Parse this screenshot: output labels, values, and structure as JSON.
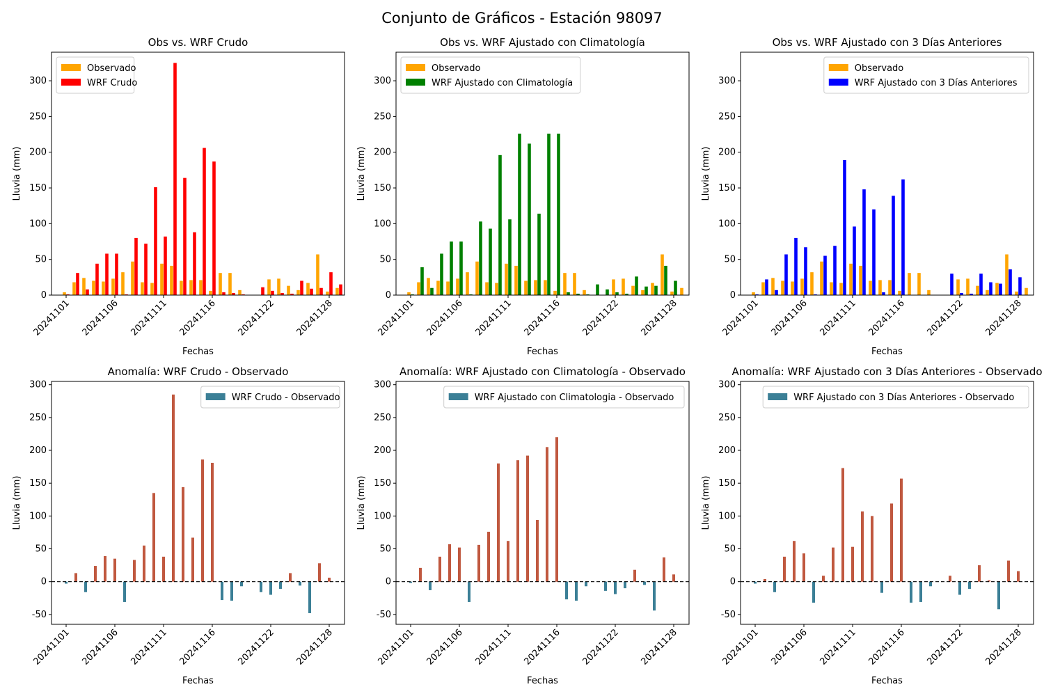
{
  "figure": {
    "title": "Conjunto de Gráficos - Estación 98097"
  },
  "colors": {
    "observed": "#ffa500",
    "wrf_crudo": "#ff0000",
    "wrf_clim": "#008000",
    "wrf_3d": "#0000ff",
    "anomaly_positive": "#c0583f",
    "anomaly_negative": "#3b7f96",
    "anomaly_legend": "#3b7f96"
  },
  "chart_data": [
    {
      "type": "bar",
      "title": "Obs vs. WRF Crudo",
      "xlabel": "Fechas",
      "ylabel": "Lluvia (mm)",
      "ylim": [
        0,
        340
      ],
      "yticks": [
        0,
        50,
        100,
        150,
        200,
        250,
        300
      ],
      "xtick_labels": [
        "20241101",
        "20241106",
        "20241111",
        "20241116",
        "20241122",
        "20241128"
      ],
      "legend_position": "top-left",
      "categories": [
        "20241101",
        "20241102",
        "20241103",
        "20241104",
        "20241105",
        "20241106",
        "20241107",
        "20241108",
        "20241109",
        "20241110",
        "20241111",
        "20241112",
        "20241113",
        "20241114",
        "20241115",
        "20241116",
        "20241117",
        "20241118",
        "20241119",
        "20241120",
        "20241121",
        "20241122",
        "20241123",
        "20241124",
        "20241125",
        "20241126",
        "20241127",
        "20241128",
        "20241129",
        "20241130"
      ],
      "series": [
        {
          "name": "Observado",
          "color_key": "observed",
          "values": [
            4,
            18,
            24,
            20,
            19,
            23,
            32,
            47,
            18,
            17,
            44,
            41,
            20,
            21,
            21,
            6,
            31,
            31,
            7,
            null,
            null,
            22,
            23,
            13,
            7,
            17,
            57,
            5,
            10,
            null
          ]
        },
        {
          "name": "WRF Crudo",
          "color_key": "wrf_crudo",
          "values": [
            1,
            31,
            8,
            44,
            58,
            58,
            1,
            80,
            72,
            151,
            82,
            325,
            164,
            88,
            206,
            187,
            4,
            3,
            1,
            null,
            11,
            6,
            3,
            2,
            20,
            9,
            10,
            32,
            15,
            null
          ]
        }
      ]
    },
    {
      "type": "bar",
      "title": "Obs vs. WRF Ajustado con Climatología",
      "xlabel": "Fechas",
      "ylabel": "Lluvia (mm)",
      "ylim": [
        0,
        340
      ],
      "yticks": [
        0,
        50,
        100,
        150,
        200,
        250,
        300
      ],
      "xtick_labels": [
        "20241101",
        "20241106",
        "20241111",
        "20241116",
        "20241122",
        "20241128"
      ],
      "legend_position": "top-left",
      "categories": [
        "20241101",
        "20241102",
        "20241103",
        "20241104",
        "20241105",
        "20241106",
        "20241107",
        "20241108",
        "20241109",
        "20241110",
        "20241111",
        "20241112",
        "20241113",
        "20241114",
        "20241115",
        "20241116",
        "20241117",
        "20241118",
        "20241119",
        "20241120",
        "20241121",
        "20241122",
        "20241123",
        "20241124",
        "20241125",
        "20241126",
        "20241127",
        "20241128",
        "20241129",
        "20241130"
      ],
      "series": [
        {
          "name": "Observado",
          "color_key": "observed",
          "values": [
            4,
            18,
            24,
            20,
            19,
            23,
            32,
            47,
            18,
            17,
            44,
            41,
            20,
            21,
            21,
            6,
            31,
            31,
            7,
            null,
            null,
            22,
            23,
            13,
            7,
            17,
            57,
            5,
            10,
            null
          ]
        },
        {
          "name": "WRF Ajustado con Climatología",
          "color_key": "wrf_clim",
          "values": [
            1,
            39,
            10,
            58,
            75,
            75,
            1,
            103,
            93,
            196,
            106,
            226,
            212,
            114,
            226,
            226,
            4,
            2,
            1,
            15,
            8,
            4,
            2,
            26,
            12,
            13,
            41,
            20,
            null,
            null
          ]
        }
      ]
    },
    {
      "type": "bar",
      "title": "Obs vs. WRF Ajustado con 3 Días Anteriores",
      "xlabel": "Fechas",
      "ylabel": "Lluvia (mm)",
      "ylim": [
        0,
        340
      ],
      "yticks": [
        0,
        50,
        100,
        150,
        200,
        250,
        300
      ],
      "xtick_labels": [
        "20241101",
        "20241106",
        "20241111",
        "20241116",
        "20241122",
        "20241128"
      ],
      "legend_position": "top-right",
      "categories": [
        "20241101",
        "20241102",
        "20241103",
        "20241104",
        "20241105",
        "20241106",
        "20241107",
        "20241108",
        "20241109",
        "20241110",
        "20241111",
        "20241112",
        "20241113",
        "20241114",
        "20241115",
        "20241116",
        "20241117",
        "20241118",
        "20241119",
        "20241120",
        "20241121",
        "20241122",
        "20241123",
        "20241124",
        "20241125",
        "20241126",
        "20241127",
        "20241128",
        "20241129",
        "20241130"
      ],
      "series": [
        {
          "name": "Observado",
          "color_key": "observed",
          "values": [
            4,
            18,
            24,
            20,
            19,
            23,
            32,
            47,
            18,
            17,
            44,
            41,
            20,
            21,
            21,
            6,
            31,
            31,
            7,
            null,
            null,
            22,
            23,
            13,
            7,
            17,
            57,
            5,
            10,
            null
          ]
        },
        {
          "name": "WRF Ajustado con 3 Días Anteriores",
          "color_key": "wrf_3d",
          "values": [
            1,
            22,
            7,
            57,
            80,
            67,
            1,
            55,
            69,
            189,
            96,
            148,
            120,
            4,
            139,
            162,
            null,
            null,
            null,
            null,
            30,
            3,
            2,
            30,
            18,
            16,
            36,
            25,
            null,
            null
          ]
        }
      ]
    },
    {
      "type": "bar",
      "title": "Anomalía: WRF Crudo - Observado",
      "xlabel": "Fechas",
      "ylabel": "Lluvia (mm)",
      "ylim": [
        -65,
        305
      ],
      "yticks": [
        -50,
        0,
        50,
        100,
        150,
        200,
        250,
        300
      ],
      "xtick_labels": [
        "20241101",
        "20241106",
        "20241111",
        "20241116",
        "20241122",
        "20241128"
      ],
      "legend_position": "top-right",
      "zero_line": true,
      "categories": [
        "20241101",
        "20241102",
        "20241103",
        "20241104",
        "20241105",
        "20241106",
        "20241107",
        "20241108",
        "20241109",
        "20241110",
        "20241111",
        "20241112",
        "20241113",
        "20241114",
        "20241115",
        "20241116",
        "20241117",
        "20241118",
        "20241119",
        "20241120",
        "20241121",
        "20241122",
        "20241123",
        "20241124",
        "20241125",
        "20241126",
        "20241127",
        "20241128",
        "20241129",
        "20241130"
      ],
      "series": [
        {
          "name": "WRF Crudo - Observado",
          "values": [
            -3,
            13,
            -16,
            24,
            39,
            35,
            -31,
            33,
            55,
            135,
            38,
            285,
            144,
            67,
            186,
            181,
            -28,
            -29,
            -7,
            null,
            -16,
            -20,
            -11,
            13,
            -6,
            -48,
            28,
            6,
            null,
            null
          ]
        }
      ]
    },
    {
      "type": "bar",
      "title": "Anomalía: WRF Ajustado con Climatología - Observado",
      "xlabel": "Fechas",
      "ylabel": "Lluvia (mm)",
      "ylim": [
        -65,
        305
      ],
      "yticks": [
        -50,
        0,
        50,
        100,
        150,
        200,
        250,
        300
      ],
      "xtick_labels": [
        "20241101",
        "20241106",
        "20241111",
        "20241116",
        "20241122",
        "20241128"
      ],
      "legend_position": "top-right",
      "zero_line": true,
      "categories": [
        "20241101",
        "20241102",
        "20241103",
        "20241104",
        "20241105",
        "20241106",
        "20241107",
        "20241108",
        "20241109",
        "20241110",
        "20241111",
        "20241112",
        "20241113",
        "20241114",
        "20241115",
        "20241116",
        "20241117",
        "20241118",
        "20241119",
        "20241120",
        "20241121",
        "20241122",
        "20241123",
        "20241124",
        "20241125",
        "20241126",
        "20241127",
        "20241128",
        "20241129",
        "20241130"
      ],
      "series": [
        {
          "name": "WRF Ajustado con Climatologia - Observado",
          "values": [
            -2,
            21,
            -13,
            38,
            57,
            52,
            -31,
            56,
            76,
            180,
            62,
            185,
            192,
            94,
            205,
            220,
            -27,
            -29,
            -7,
            null,
            -14,
            -19,
            -10,
            18,
            -5,
            -44,
            37,
            11,
            null,
            null
          ]
        }
      ]
    },
    {
      "type": "bar",
      "title": "Anomalía: WRF Ajustado con 3 Días Anteriores - Observado",
      "xlabel": "Fechas",
      "ylabel": "Lluvia (mm)",
      "ylim": [
        -65,
        305
      ],
      "yticks": [
        -50,
        0,
        50,
        100,
        150,
        200,
        250,
        300
      ],
      "xtick_labels": [
        "20241101",
        "20241106",
        "20241111",
        "20241116",
        "20241122",
        "20241128"
      ],
      "legend_position": "top-right",
      "zero_line": true,
      "categories": [
        "20241101",
        "20241102",
        "20241103",
        "20241104",
        "20241105",
        "20241106",
        "20241107",
        "20241108",
        "20241109",
        "20241110",
        "20241111",
        "20241112",
        "20241113",
        "20241114",
        "20241115",
        "20241116",
        "20241117",
        "20241118",
        "20241119",
        "20241120",
        "20241121",
        "20241122",
        "20241123",
        "20241124",
        "20241125",
        "20241126",
        "20241127",
        "20241128",
        "20241129",
        "20241130"
      ],
      "series": [
        {
          "name": "WRF Ajustado con 3 Días Anteriores - Observado",
          "values": [
            -3,
            4,
            -16,
            38,
            62,
            43,
            -32,
            9,
            52,
            173,
            53,
            107,
            100,
            -17,
            119,
            157,
            -32,
            -31,
            -7,
            null,
            9,
            -20,
            -11,
            25,
            2,
            -42,
            32,
            16,
            null,
            null
          ]
        }
      ]
    }
  ]
}
